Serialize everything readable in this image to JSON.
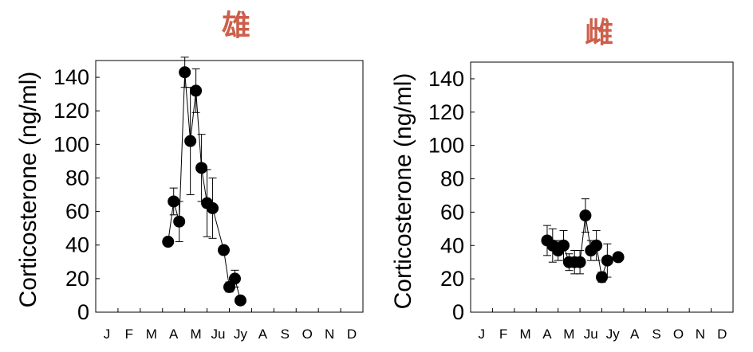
{
  "chart_data": [
    {
      "type": "scatter",
      "title": "雄",
      "ylabel": "Corticosterone (ng/ml)",
      "xlabel": "",
      "ylim": [
        0,
        150
      ],
      "yticks": [
        0,
        20,
        40,
        60,
        80,
        100,
        120,
        140
      ],
      "xlim": [
        0,
        12
      ],
      "month_labels": [
        "J",
        "F",
        "M",
        "A",
        "M",
        "Ju",
        "Jy",
        "A",
        "S",
        "O",
        "N",
        "D"
      ],
      "grid": false,
      "connected": true,
      "marker_color": "#000000",
      "points": [
        {
          "x": 3.25,
          "y": 42,
          "err": 0
        },
        {
          "x": 3.5,
          "y": 66,
          "err": 8
        },
        {
          "x": 3.75,
          "y": 54,
          "err": 12
        },
        {
          "x": 4.0,
          "y": 143,
          "err": 9
        },
        {
          "x": 4.25,
          "y": 102,
          "err": 32
        },
        {
          "x": 4.5,
          "y": 132,
          "err": 13
        },
        {
          "x": 4.75,
          "y": 86,
          "err": 20
        },
        {
          "x": 5.0,
          "y": 65,
          "err": 20
        },
        {
          "x": 5.25,
          "y": 62,
          "err": 18
        },
        {
          "x": 5.75,
          "y": 37,
          "err": 0
        },
        {
          "x": 6.0,
          "y": 15,
          "err": 3
        },
        {
          "x": 6.25,
          "y": 20,
          "err": 5
        },
        {
          "x": 6.5,
          "y": 7,
          "err": 0
        }
      ]
    },
    {
      "type": "scatter",
      "title": "雌",
      "ylabel": "Corticosterone (ng/ml)",
      "xlabel": "",
      "ylim": [
        0,
        150
      ],
      "yticks": [
        0,
        20,
        40,
        60,
        80,
        100,
        120,
        140
      ],
      "xlim": [
        0,
        12
      ],
      "month_labels": [
        "J",
        "F",
        "M",
        "A",
        "M",
        "Ju",
        "Jy",
        "A",
        "S",
        "O",
        "N",
        "D"
      ],
      "grid": false,
      "connected": true,
      "marker_color": "#000000",
      "points": [
        {
          "x": 3.5,
          "y": 43,
          "err": 9
        },
        {
          "x": 3.75,
          "y": 40,
          "err": 10
        },
        {
          "x": 4.0,
          "y": 37,
          "err": 6
        },
        {
          "x": 4.25,
          "y": 40,
          "err": 9
        },
        {
          "x": 4.5,
          "y": 30,
          "err": 5
        },
        {
          "x": 4.75,
          "y": 30,
          "err": 7
        },
        {
          "x": 5.0,
          "y": 30,
          "err": 7
        },
        {
          "x": 5.25,
          "y": 58,
          "err": 10
        },
        {
          "x": 5.5,
          "y": 37,
          "err": 6
        },
        {
          "x": 5.75,
          "y": 40,
          "err": 9
        },
        {
          "x": 6.0,
          "y": 21,
          "err": 3
        },
        {
          "x": 6.25,
          "y": 31,
          "err": 10
        },
        {
          "x": 6.75,
          "y": 33,
          "err": 0
        }
      ]
    }
  ]
}
